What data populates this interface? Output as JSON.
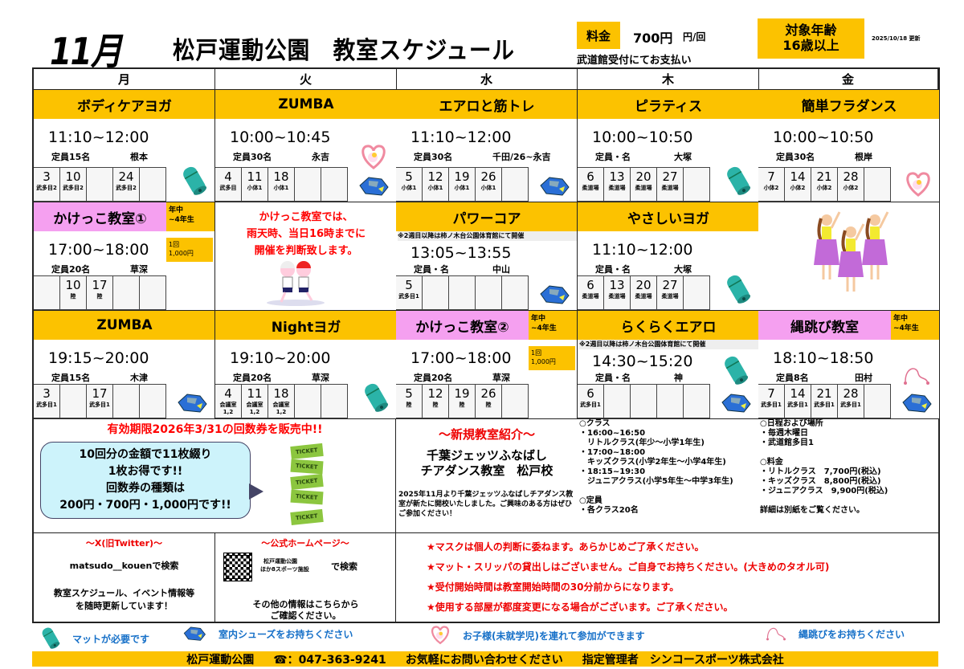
{
  "header": {
    "month": "11月",
    "title": "松戸運動公園　教室スケジュール",
    "fee_label": "料金",
    "fee_value": "700円",
    "fee_unit": "円/回",
    "fee_note": "武道館受付にてお支払い",
    "age_line1": "対象年齢",
    "age_line2": "16歳以上",
    "updated": "2025/10/18 更新"
  },
  "days": [
    "月",
    "火",
    "水",
    "木",
    "金"
  ],
  "rows": [
    [
      {
        "title": "ボディケアヨガ",
        "time": "11:10~12:00",
        "capacity": "定員15名",
        "instructor": "根本",
        "dates": [
          {
            "d": "3",
            "l": "武多目2"
          },
          {
            "d": "10",
            "l": "武多目2"
          },
          {
            "d": "",
            "l": ""
          },
          {
            "d": "24",
            "l": "武多目2"
          },
          {
            "d": "",
            "l": ""
          }
        ],
        "icons": [
          "mat"
        ]
      },
      {
        "title": "ZUMBA",
        "time": "10:00~10:45",
        "capacity": "定員30名",
        "instructor": "永吉",
        "dates": [
          {
            "d": "4",
            "l": "武多目"
          },
          {
            "d": "11",
            "l": "小体1"
          },
          {
            "d": "18",
            "l": "小体1"
          },
          {
            "d": "",
            "l": ""
          },
          {
            "d": "",
            "l": ""
          }
        ],
        "icons": [
          "heart",
          "shoes"
        ]
      },
      {
        "title": "エアロと筋トレ",
        "time": "11:10~12:00",
        "capacity": "定員30名",
        "instructor": "千田/26~永吉",
        "dates": [
          {
            "d": "5",
            "l": "小体1"
          },
          {
            "d": "12",
            "l": "小体1"
          },
          {
            "d": "19",
            "l": "小体1"
          },
          {
            "d": "26",
            "l": "小体1"
          },
          {
            "d": "",
            "l": ""
          }
        ],
        "icons": [
          "shoes"
        ]
      },
      {
        "title": "ピラティス",
        "time": "10:00~10:50",
        "capacity": "定員・名",
        "instructor": "大塚",
        "dates": [
          {
            "d": "6",
            "l": "柔道場"
          },
          {
            "d": "13",
            "l": "柔道場"
          },
          {
            "d": "20",
            "l": "柔道場"
          },
          {
            "d": "27",
            "l": "柔道場"
          },
          {
            "d": "",
            "l": ""
          }
        ],
        "icons": [
          "mat"
        ]
      },
      {
        "title": "簡単フラダンス",
        "time": "10:00~10:50",
        "capacity": "定員30名",
        "instructor": "根岸",
        "dates": [
          {
            "d": "7",
            "l": "小体2"
          },
          {
            "d": "14",
            "l": "小体2"
          },
          {
            "d": "21",
            "l": "小体2"
          },
          {
            "d": "28",
            "l": "小体2"
          },
          {
            "d": "",
            "l": ""
          }
        ],
        "icons": [
          "heart"
        ]
      }
    ],
    [
      {
        "title": "かけっこ教室①",
        "pink": true,
        "side": "年中\n~4年生",
        "fee": "1回\n1,000円",
        "time": "17:00~18:00",
        "capacity": "定員20名",
        "instructor": "草深",
        "dates": [
          {
            "d": "",
            "l": ""
          },
          {
            "d": "10",
            "l": "陸"
          },
          {
            "d": "17",
            "l": "陸"
          },
          {
            "d": "",
            "l": ""
          },
          {
            "d": "",
            "l": ""
          }
        ],
        "icons": []
      },
      {
        "notice": "かけっこ教室では、\n雨天時、当日16時までに\n開催を判断致します。",
        "illustration": "running-kids"
      },
      {
        "title": "パワーコア",
        "note": "※2週目以降は柿ノ木台公園体育館にて開催",
        "time": "13:05~13:55",
        "capacity": "定員・名",
        "instructor": "中山",
        "dates": [
          {
            "d": "5",
            "l": "武多目1"
          },
          {
            "d": "",
            "l": ""
          },
          {
            "d": "",
            "l": ""
          },
          {
            "d": "",
            "l": ""
          },
          {
            "d": "",
            "l": ""
          }
        ],
        "icons": [
          "shoes"
        ]
      },
      {
        "title": "やさしいヨガ",
        "time": "11:10~12:00",
        "capacity": "定員・名",
        "instructor": "大塚",
        "dates": [
          {
            "d": "6",
            "l": "柔道場"
          },
          {
            "d": "13",
            "l": "柔道場"
          },
          {
            "d": "20",
            "l": "柔道場"
          },
          {
            "d": "27",
            "l": "柔道場"
          },
          {
            "d": "",
            "l": ""
          }
        ],
        "icons": [
          "mat"
        ]
      },
      {
        "illustration": "hula-dancers"
      }
    ],
    [
      {
        "title": "ZUMBA",
        "time": "19:15~20:00",
        "capacity": "定員15名",
        "instructor": "木津",
        "dates": [
          {
            "d": "3",
            "l": "武多目1"
          },
          {
            "d": "",
            "l": ""
          },
          {
            "d": "17",
            "l": "武多目1"
          },
          {
            "d": "",
            "l": ""
          },
          {
            "d": "",
            "l": ""
          }
        ],
        "icons": [
          "shoes"
        ]
      },
      {
        "title": "Nightヨガ",
        "time": "19:10~20:00",
        "capacity": "定員20名",
        "instructor": "草深",
        "dates": [
          {
            "d": "4",
            "l": "会議室1,2"
          },
          {
            "d": "11",
            "l": "会議室1,2"
          },
          {
            "d": "18",
            "l": "会議室1,2"
          },
          {
            "d": "",
            "l": ""
          },
          {
            "d": "",
            "l": ""
          }
        ],
        "icons": [
          "mat"
        ]
      },
      {
        "title": "かけっこ教室②",
        "pink": true,
        "side": "年中\n~4年生",
        "fee": "1回\n1,000円",
        "time": "17:00~18:00",
        "capacity": "定員20名",
        "instructor": "草深",
        "dates": [
          {
            "d": "5",
            "l": "陸"
          },
          {
            "d": "12",
            "l": "陸"
          },
          {
            "d": "19",
            "l": "陸"
          },
          {
            "d": "26",
            "l": "陸"
          },
          {
            "d": "",
            "l": ""
          }
        ],
        "icons": []
      },
      {
        "title": "らくらくエアロ",
        "note": "※2週目以降は柿ノ木台公園体育館にて開催",
        "time": "14:30~15:20",
        "capacity": "定員・名",
        "instructor": "神",
        "dates": [
          {
            "d": "6",
            "l": "武多目1"
          },
          {
            "d": "",
            "l": ""
          },
          {
            "d": "",
            "l": ""
          },
          {
            "d": "",
            "l": ""
          },
          {
            "d": "",
            "l": ""
          }
        ],
        "icons": [
          "mat",
          "shoes"
        ]
      },
      {
        "title": "縄跳び教室",
        "pink": true,
        "side": "年中\n~4年生",
        "time": "18:10~18:50",
        "capacity": "定員8名",
        "instructor": "田村",
        "dates": [
          {
            "d": "7",
            "l": "武多目1"
          },
          {
            "d": "14",
            "l": "武多目1"
          },
          {
            "d": "21",
            "l": "武多目1"
          },
          {
            "d": "28",
            "l": "武多目1"
          },
          {
            "d": "",
            "l": ""
          }
        ],
        "icons": [
          "rope",
          "shoes"
        ]
      }
    ]
  ],
  "ticket": {
    "headline": "有効期限2026年3/31の回数券を販売中!!",
    "lines": [
      "10回分の金額で11枚綴り",
      "1枚お得です!!",
      "回数券の種類は",
      "200円・700円・1,000円です!!"
    ],
    "ticket_word": "TICKET"
  },
  "new_class": {
    "heading": "～新規教室紹介～",
    "name1": "千葉ジェッツふなばし",
    "name2": "チアダンス教室　松戸校",
    "desc": "2025年11月より千葉ジェッツふなばしチアダンス教室が新たに開校いたしました。ご興味のある方はぜひご参加ください！",
    "left": [
      "○クラス",
      "・16:00~16:50",
      "　リトルクラス(年少～小学1年生)",
      "・17:00~18:00",
      "　キッズクラス(小学2年生～小学4年生)",
      "・18:15~19:30",
      "　ジュニアクラス(小学5年生～中学3年生)",
      "",
      "○定員",
      "・各クラス20名"
    ],
    "right": [
      "○日程および場所",
      "・毎週木曜日",
      "・武道館多目1",
      "",
      "○料金",
      "・リトルクラス　7,700円(税込)",
      "・キッズクラス　8,800円(税込)",
      "・ジュニアクラス　9,900円(税込)",
      "",
      "詳細は別紙をご覧ください。"
    ]
  },
  "twitter": {
    "heading": "～X(旧Twitter)～",
    "search": "matsudo__kouenで検索",
    "desc1": "教室スケジュール、イベント情報等",
    "desc2": "を随時更新しています！"
  },
  "homepage": {
    "heading": "～公式ホームページ～",
    "box1": "松戸運動公園",
    "box2": "ほか8スポーツ施設",
    "search": "で検索",
    "desc1": "その他の情報はこちらから",
    "desc2": "ご確認ください。"
  },
  "notices": [
    "★マスクは個人の判断に委ねます。あらかじめご了承ください。",
    "★マット・スリッパの貸出しはございません。ご自身でお持ちください。(大きめのタオル可)",
    "★受付開始時間は教室開始時間の30分前からになります。",
    "★使用する部屋が都度変更になる場合がございます。ご了承ください。"
  ],
  "legend": [
    {
      "icon": "mat",
      "text": "マットが必要です"
    },
    {
      "icon": "shoes",
      "text": "室内シューズをお持ちください"
    },
    {
      "icon": "heart",
      "text": "お子様(未就学児)を連れて参加ができます"
    },
    {
      "icon": "rope",
      "text": "縄跳びをお持ちください"
    }
  ],
  "footer": {
    "facility": "松戸運動公園",
    "phone": "☎：047-363-9241",
    "contact": "お気軽にお問い合わせください",
    "manager": "指定管理者　シンコースポーツ株式会社"
  },
  "colors": {
    "accent": "#fcc200",
    "pink": "#f5a0f0",
    "red": "#e00000",
    "legend_blue": "#1670c8"
  }
}
